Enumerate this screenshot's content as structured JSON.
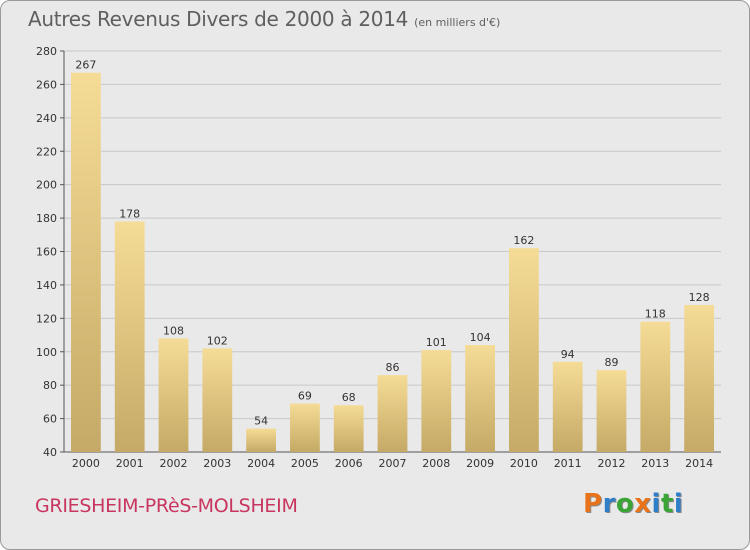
{
  "title": "Autres Revenus Divers de 2000 à 2014",
  "unit": "(en milliers d'€)",
  "commune": "GRIESHEIM-PRèS-MOLSHEIM",
  "logo": {
    "letters": [
      "P",
      "r",
      "o",
      "x",
      "i",
      "t",
      "i"
    ],
    "colors": [
      "#e8731a",
      "#2f7fc8",
      "#3aa535",
      "#e8731a",
      "#2f7fc8",
      "#3aa535",
      "#2f7fc8"
    ]
  },
  "colors": {
    "bar_top": "#f5dc96",
    "bar_bottom": "#c5a966",
    "grid": "#c8c8c8",
    "text": "#333333"
  },
  "chart_data": {
    "type": "bar",
    "categories": [
      "2000",
      "2001",
      "2002",
      "2003",
      "2004",
      "2005",
      "2006",
      "2007",
      "2008",
      "2009",
      "2010",
      "2011",
      "2012",
      "2013",
      "2014"
    ],
    "values": [
      267,
      178,
      108,
      102,
      54,
      69,
      68,
      86,
      101,
      104,
      162,
      94,
      89,
      118,
      128
    ],
    "ylim": [
      40,
      280
    ],
    "yticks": [
      40,
      60,
      80,
      100,
      120,
      140,
      160,
      180,
      200,
      220,
      240,
      260,
      280
    ],
    "grid": true,
    "data_labels": true
  }
}
